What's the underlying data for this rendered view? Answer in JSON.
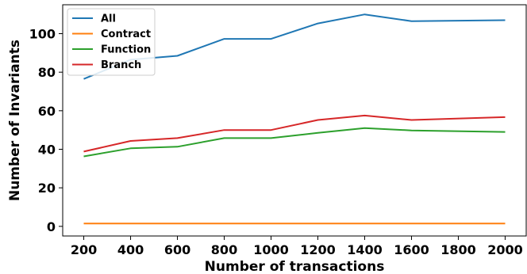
{
  "chart_data": {
    "type": "line",
    "xlabel": "Number of transactions",
    "ylabel": "Number of Invariants",
    "xlim": [
      110,
      2090
    ],
    "ylim": [
      -5,
      115
    ],
    "xticks": [
      200,
      400,
      600,
      800,
      1000,
      1200,
      1400,
      1600,
      1800,
      2000
    ],
    "yticks": [
      0,
      20,
      40,
      60,
      80,
      100
    ],
    "grid": false,
    "legend_position": "top-left",
    "series": [
      {
        "name": "All",
        "color": "#1f77b4",
        "x": [
          200,
          400,
          600,
          800,
          1000,
          1200,
          1400,
          1600,
          2000
        ],
        "y": [
          76.5,
          86.5,
          88.5,
          97.3,
          97.3,
          105.3,
          110,
          106.5,
          107
        ]
      },
      {
        "name": "Contract",
        "color": "#ff7f0e",
        "x": [
          200,
          400,
          600,
          800,
          1000,
          1200,
          1400,
          1600,
          2000
        ],
        "y": [
          1.5,
          1.5,
          1.5,
          1.5,
          1.5,
          1.5,
          1.5,
          1.5,
          1.5
        ]
      },
      {
        "name": "Function",
        "color": "#2ca02c",
        "x": [
          200,
          400,
          600,
          800,
          1000,
          1200,
          1400,
          1600,
          2000
        ],
        "y": [
          36.3,
          40.5,
          41.3,
          45.8,
          45.8,
          48.5,
          51,
          49.8,
          49
        ]
      },
      {
        "name": "Branch",
        "color": "#d62728",
        "x": [
          200,
          400,
          600,
          800,
          1000,
          1200,
          1400,
          1600,
          2000
        ],
        "y": [
          38.8,
          44.3,
          45.8,
          50,
          50,
          55.2,
          57.5,
          55.2,
          56.7
        ]
      }
    ]
  }
}
